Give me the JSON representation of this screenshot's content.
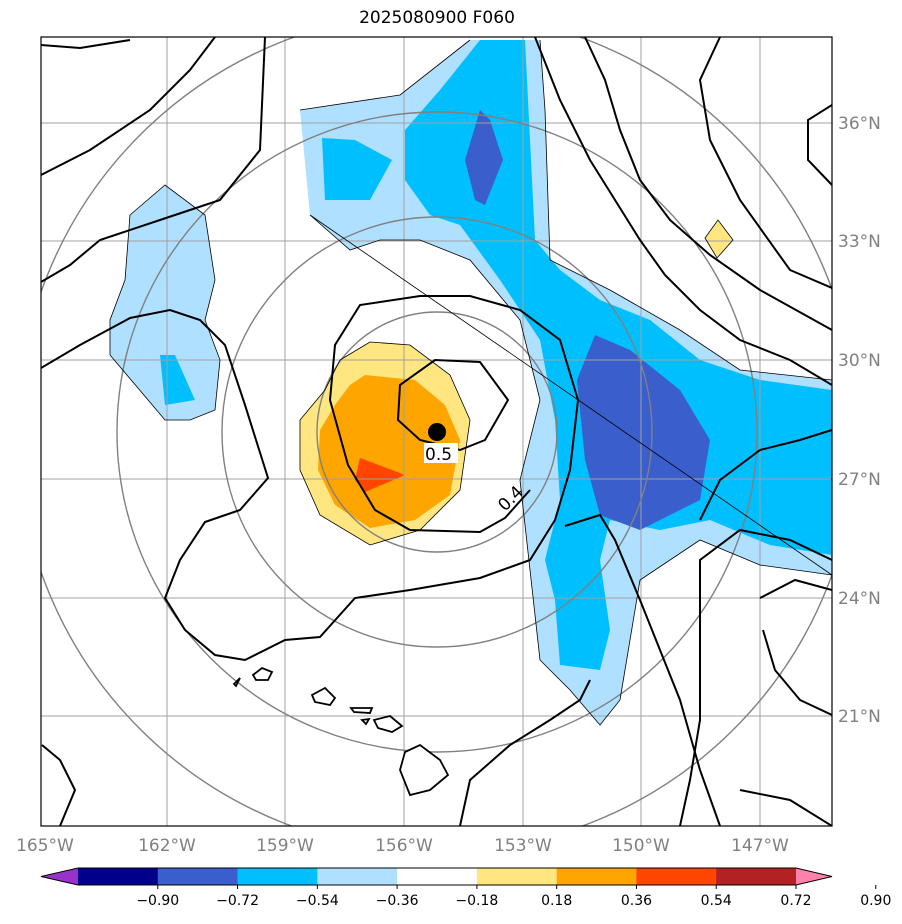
{
  "title": "2025080900 F060",
  "map": {
    "lon_labels": [
      "165°W",
      "162°W",
      "159°W",
      "156°W",
      "153°W",
      "150°W",
      "147°W"
    ],
    "lat_labels": [
      "36°N",
      "33°N",
      "30°N",
      "27°N",
      "24°N",
      "21°N"
    ],
    "contour_labels": [
      "0.5",
      "0.4"
    ],
    "center_marker": "storm-center-dot"
  },
  "colorbar": {
    "ticks": [
      "−0.90",
      "−0.72",
      "−0.54",
      "−0.36",
      "−0.18",
      "0.18",
      "0.36",
      "0.54",
      "0.72",
      "0.90"
    ],
    "colors": [
      "#9932cc",
      "#00008b",
      "#3a5fcd",
      "#00bfff",
      "#b0e0ff",
      "#ffffff",
      "#ffe680",
      "#ffa500",
      "#ff4500",
      "#b22222",
      "#ff82ab"
    ]
  }
}
